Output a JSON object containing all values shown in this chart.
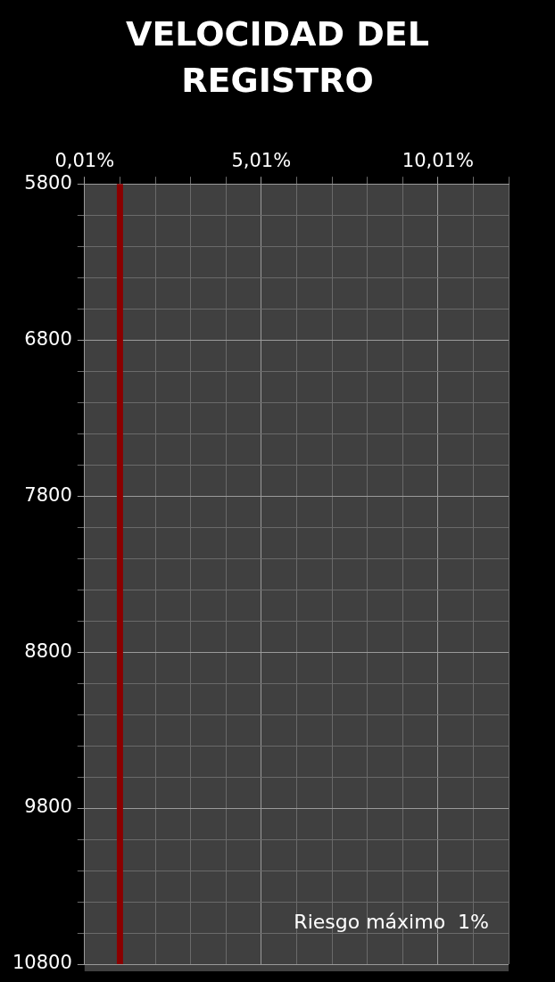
{
  "chart_data": {
    "type": "line",
    "title": "VELOCIDAD DEL REGISTRO",
    "series": [
      {
        "color": "#8b0000",
        "x": [
          1.01,
          1.01
        ],
        "values": [
          5800,
          10800
        ]
      }
    ],
    "xlim": [
      0.01,
      12.01
    ],
    "xticks": [
      {
        "value": 0.01,
        "label": "0,01%"
      },
      {
        "value": 1.01,
        "label": null
      },
      {
        "value": 2.01,
        "label": null
      },
      {
        "value": 3.01,
        "label": null
      },
      {
        "value": 4.01,
        "label": null
      },
      {
        "value": 5.01,
        "label": "5,01%"
      },
      {
        "value": 6.01,
        "label": null
      },
      {
        "value": 7.01,
        "label": null
      },
      {
        "value": 8.01,
        "label": null
      },
      {
        "value": 9.01,
        "label": null
      },
      {
        "value": 10.01,
        "label": "10,01%"
      },
      {
        "value": 11.01,
        "label": null
      },
      {
        "value": 12.01,
        "label": null
      }
    ],
    "ylim": [
      10800,
      5800
    ],
    "yticks": [
      5800,
      {
        "value": 6000,
        "label": null
      },
      {
        "value": 6200,
        "label": null
      },
      {
        "value": 6400,
        "label": null
      },
      {
        "value": 6600,
        "label": null
      },
      6800,
      {
        "value": 7000,
        "label": null
      },
      {
        "value": 7200,
        "label": null
      },
      {
        "value": 7400,
        "label": null
      },
      {
        "value": 7600,
        "label": null
      },
      7800,
      {
        "value": 8000,
        "label": null
      },
      {
        "value": 8200,
        "label": null
      },
      {
        "value": 8400,
        "label": null
      },
      {
        "value": 8600,
        "label": null
      },
      8800,
      {
        "value": 9000,
        "label": null
      },
      {
        "value": 9200,
        "label": null
      },
      {
        "value": 9400,
        "label": null
      },
      {
        "value": 9600,
        "label": null
      },
      9800,
      {
        "value": 10000,
        "label": null
      },
      {
        "value": 10200,
        "label": null
      },
      {
        "value": 10400,
        "label": null
      },
      {
        "value": 10600,
        "label": null
      },
      10800
    ],
    "grid": true,
    "legend": false,
    "annotations": [
      "Riesgo máximo  1%"
    ]
  }
}
